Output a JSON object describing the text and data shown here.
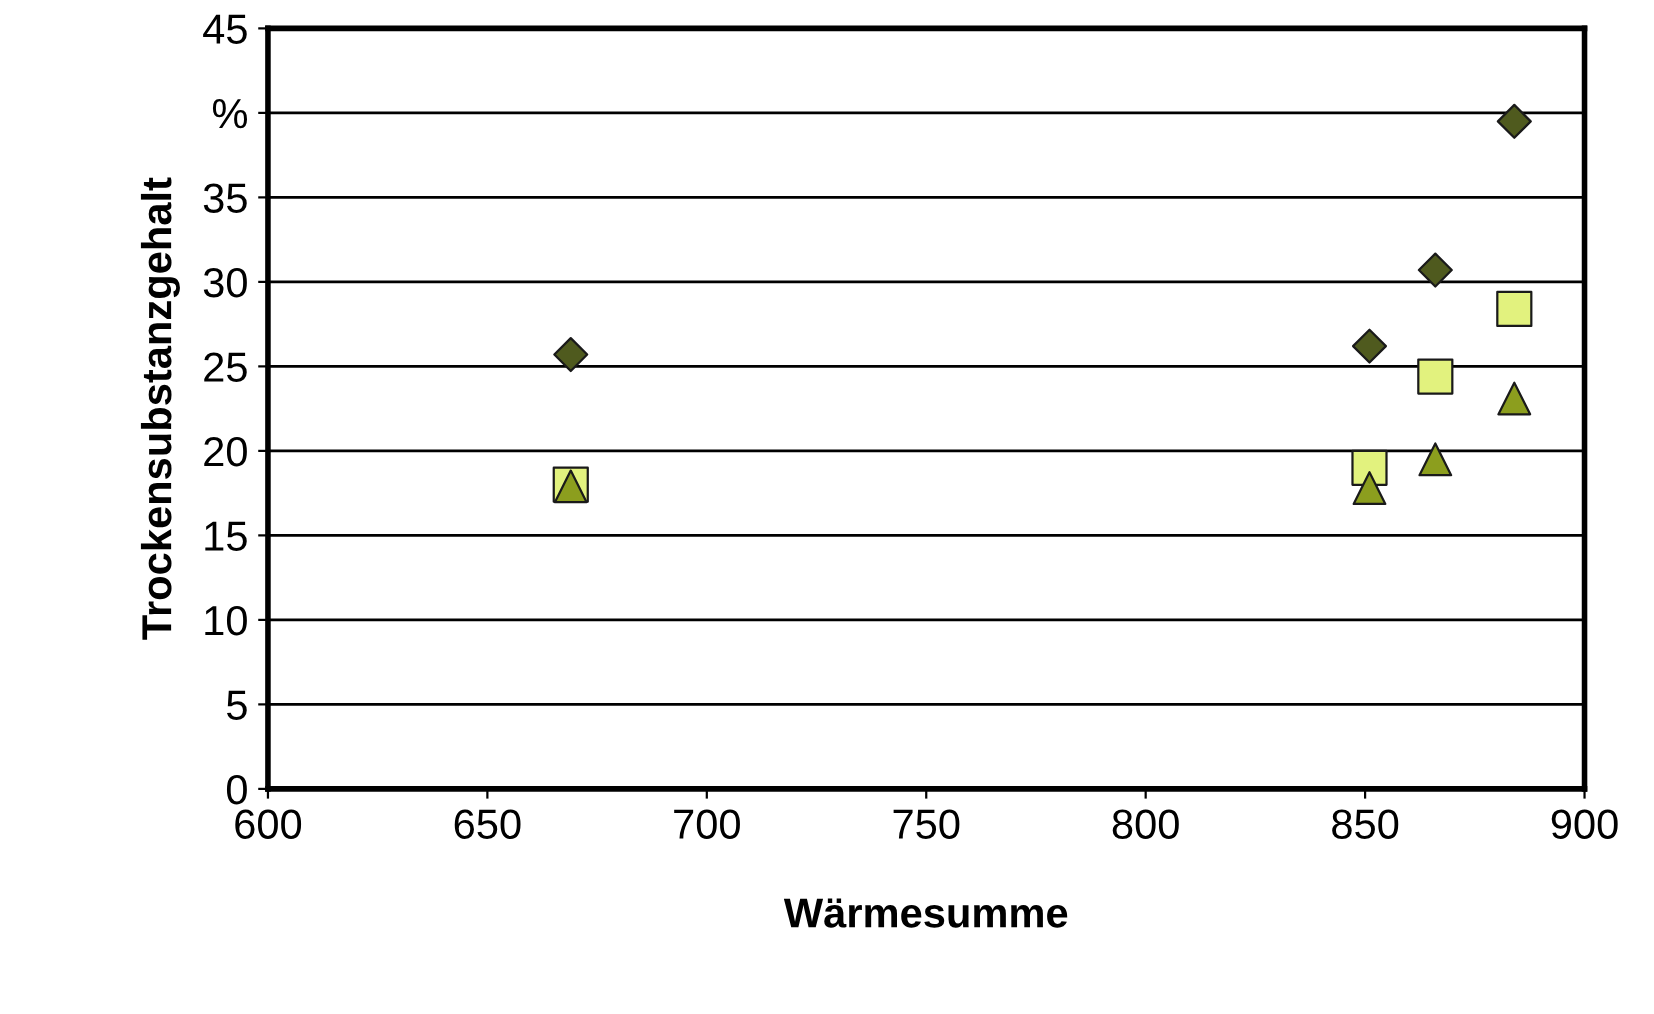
{
  "chart_data": {
    "type": "scatter",
    "xlabel": "Wärmesumme",
    "ylabel": "Trockensubstanzgehalt",
    "xlim": [
      600,
      900
    ],
    "xticks": [
      600,
      650,
      700,
      750,
      800,
      850,
      900
    ],
    "ylim": [
      0,
      45
    ],
    "yticks": [
      0,
      5,
      10,
      15,
      20,
      25,
      30,
      35,
      {
        "value": 40,
        "label": "%"
      },
      45
    ],
    "grid": "y",
    "legend": false,
    "series": [
      {
        "color": "#4f5a1e",
        "marker": "diamond",
        "x": [
          669,
          851,
          866,
          884
        ],
        "values": [
          25.7,
          26.2,
          30.7,
          39.5
        ]
      },
      {
        "color": "#e2f27e",
        "marker": "square",
        "x": [
          669,
          851,
          866,
          884
        ],
        "values": [
          18.0,
          19.0,
          24.4,
          28.4
        ]
      },
      {
        "color": "#8c9e1e",
        "marker": "triangle",
        "x": [
          669,
          851,
          866,
          884
        ],
        "values": [
          17.9,
          17.8,
          19.5,
          23.1
        ]
      }
    ]
  }
}
